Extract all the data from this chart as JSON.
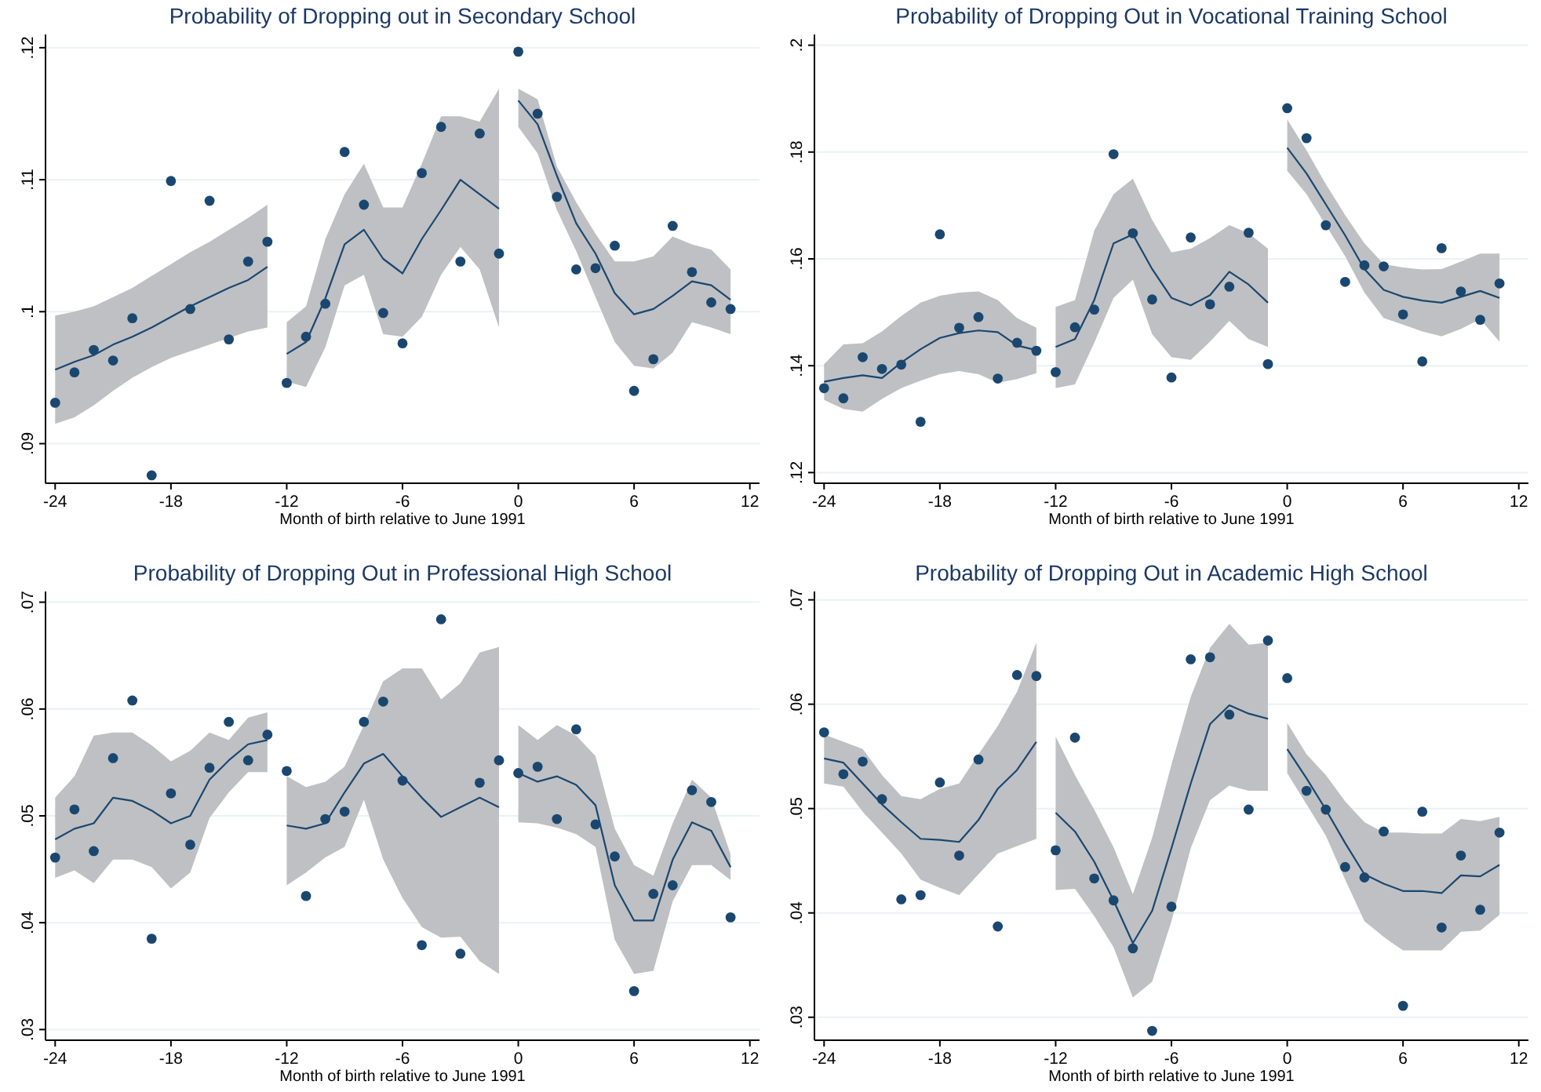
{
  "chart_data": [
    {
      "type": "scatter",
      "title": "Probability of Dropping out in Secondary School",
      "xlabel": "Month of birth relative to June 1991",
      "xlim": [
        -24.5,
        12.5
      ],
      "xticks": [
        -24,
        -18,
        -12,
        -6,
        0,
        6,
        12
      ],
      "ylim": [
        0.087,
        0.121
      ],
      "yticks": [
        {
          "value": 0.09,
          "label": ".09"
        },
        {
          "value": 0.1,
          "label": ".1"
        },
        {
          "value": 0.11,
          "label": ".11"
        },
        {
          "value": 0.12,
          "label": ".12"
        }
      ],
      "grid": "y",
      "series": [
        {
          "type": "line",
          "color": "#1a476f",
          "x": [
            -24,
            -23,
            -22,
            -21,
            -20,
            -19,
            -18,
            -17,
            -16,
            -15,
            -14,
            -13
          ],
          "values": [
            0.0956,
            0.0962,
            0.0967,
            0.0975,
            0.0981,
            0.0988,
            0.0996,
            0.1004,
            0.1011,
            0.1018,
            0.1024,
            0.1034
          ],
          "lower": [
            0.0915,
            0.092,
            0.0929,
            0.094,
            0.095,
            0.0958,
            0.0965,
            0.097,
            0.0975,
            0.098,
            0.0985,
            0.0988
          ],
          "upper": [
            0.0997,
            0.1,
            0.1004,
            0.1011,
            0.1018,
            0.1027,
            0.1036,
            0.1045,
            0.1053,
            0.1062,
            0.1071,
            0.1081
          ]
        },
        {
          "type": "line",
          "color": "#1a476f",
          "x": [
            -12,
            -11,
            -10,
            -9,
            -8,
            -7,
            -6,
            -5,
            -4,
            -3,
            -2,
            -1
          ],
          "values": [
            0.0968,
            0.0977,
            0.101,
            0.1051,
            0.1062,
            0.104,
            0.1029,
            0.1055,
            0.1077,
            0.11,
            0.1089,
            0.1078
          ],
          "lower": [
            0.0947,
            0.0943,
            0.0973,
            0.102,
            0.1028,
            0.0983,
            0.0981,
            0.0996,
            0.1028,
            0.1049,
            0.1032,
            0.0988
          ],
          "upper": [
            0.0992,
            0.1004,
            0.1055,
            0.1089,
            0.1112,
            0.1079,
            0.1079,
            0.1112,
            0.1148,
            0.1148,
            0.1144,
            0.1169
          ]
        },
        {
          "type": "line",
          "color": "#1a476f",
          "x": [
            0,
            1,
            2,
            3,
            4,
            5,
            6,
            7,
            8,
            9,
            10,
            11
          ],
          "values": [
            0.116,
            0.1142,
            0.1103,
            0.1067,
            0.1044,
            0.1014,
            0.0998,
            0.1002,
            0.1012,
            0.1023,
            0.102,
            0.1009
          ],
          "lower": [
            0.114,
            0.112,
            0.1077,
            0.1046,
            0.1011,
            0.0977,
            0.0959,
            0.0957,
            0.0969,
            0.0992,
            0.0988,
            0.0983
          ],
          "upper": [
            0.1169,
            0.1161,
            0.111,
            0.1083,
            0.1059,
            0.1038,
            0.1038,
            0.1042,
            0.1057,
            0.1051,
            0.1047,
            0.1032
          ]
        },
        {
          "marker": "circle",
          "color": "#1a476f",
          "x": [
            -24,
            -23,
            -22,
            -21,
            -20,
            -19,
            -18,
            -17,
            -16,
            -15,
            -14,
            -13,
            -12,
            -11,
            -10,
            -9,
            -8,
            -7,
            -6,
            -5,
            -4,
            -3,
            -2,
            -1,
            0,
            1,
            2,
            3,
            4,
            5,
            6,
            7,
            8,
            9,
            10,
            11
          ],
          "values": [
            0.0931,
            0.0954,
            0.0971,
            0.0963,
            0.0995,
            0.0876,
            0.1099,
            0.1002,
            0.1084,
            0.0979,
            0.1038,
            0.1053,
            0.0946,
            0.0981,
            0.1006,
            0.1121,
            0.1081,
            0.0999,
            0.0976,
            0.1105,
            0.114,
            0.1038,
            0.1135,
            0.1044,
            0.1197,
            0.115,
            0.1087,
            0.1032,
            0.1033,
            0.105,
            0.094,
            0.0964,
            0.1065,
            0.103,
            0.1007,
            0.1002
          ]
        }
      ]
    },
    {
      "type": "scatter",
      "title": "Probability of Dropping Out in Vocational Training School",
      "xlabel": "Month of birth relative to June 1991",
      "xlim": [
        -24.5,
        12.5
      ],
      "xticks": [
        -24,
        -18,
        -12,
        -6,
        0,
        6,
        12
      ],
      "ylim": [
        0.118,
        0.202
      ],
      "yticks": [
        {
          "value": 0.12,
          "label": ".12"
        },
        {
          "value": 0.14,
          "label": ".14"
        },
        {
          "value": 0.16,
          "label": ".16"
        },
        {
          "value": 0.18,
          "label": ".18"
        },
        {
          "value": 0.2,
          "label": ".2"
        }
      ],
      "grid": "y",
      "series": [
        {
          "type": "line",
          "color": "#1a476f",
          "x": [
            -24,
            -23,
            -22,
            -21,
            -20,
            -19,
            -18,
            -17,
            -16,
            -15,
            -14,
            -13
          ],
          "values": [
            0.137,
            0.1377,
            0.1382,
            0.1377,
            0.1406,
            0.1431,
            0.1452,
            0.1461,
            0.1466,
            0.1463,
            0.1438,
            0.1429
          ],
          "lower": [
            0.1336,
            0.1319,
            0.1314,
            0.1338,
            0.1358,
            0.1372,
            0.1384,
            0.139,
            0.1384,
            0.1368,
            0.1375,
            0.1386
          ],
          "upper": [
            0.1403,
            0.144,
            0.1442,
            0.1464,
            0.1493,
            0.1518,
            0.1531,
            0.1537,
            0.1539,
            0.1523,
            0.1489,
            0.1471
          ]
        },
        {
          "type": "line",
          "color": "#1a476f",
          "x": [
            -12,
            -11,
            -10,
            -9,
            -8,
            -7,
            -6,
            -5,
            -4,
            -3,
            -2,
            -1
          ],
          "values": [
            0.1435,
            0.145,
            0.1523,
            0.1629,
            0.1646,
            0.1581,
            0.1527,
            0.1513,
            0.1532,
            0.1576,
            0.1552,
            0.1518
          ],
          "lower": [
            0.1358,
            0.1365,
            0.1443,
            0.1527,
            0.1561,
            0.1459,
            0.1416,
            0.1411,
            0.1445,
            0.1484,
            0.145,
            0.1435
          ],
          "upper": [
            0.151,
            0.1523,
            0.1653,
            0.1721,
            0.175,
            0.1673,
            0.1612,
            0.1619,
            0.1639,
            0.1663,
            0.1648,
            0.1619
          ]
        },
        {
          "type": "line",
          "color": "#1a476f",
          "x": [
            0,
            1,
            2,
            3,
            4,
            5,
            6,
            7,
            8,
            9,
            10,
            11
          ],
          "values": [
            0.1808,
            0.176,
            0.1702,
            0.1644,
            0.1581,
            0.1542,
            0.1529,
            0.1522,
            0.1518,
            0.1529,
            0.154,
            0.1527
          ],
          "lower": [
            0.1765,
            0.1721,
            0.1663,
            0.1605,
            0.1537,
            0.1489,
            0.1477,
            0.1464,
            0.1455,
            0.1469,
            0.1487,
            0.1445
          ],
          "upper": [
            0.1861,
            0.1803,
            0.174,
            0.1682,
            0.1629,
            0.159,
            0.1584,
            0.158,
            0.1581,
            0.1595,
            0.161,
            0.161
          ]
        },
        {
          "marker": "circle",
          "color": "#1a476f",
          "x": [
            -24,
            -23,
            -22,
            -21,
            -20,
            -19,
            -18,
            -17,
            -16,
            -15,
            -14,
            -13,
            -12,
            -11,
            -10,
            -9,
            -8,
            -7,
            -6,
            -5,
            -4,
            -3,
            -2,
            -1,
            0,
            1,
            2,
            3,
            4,
            5,
            6,
            7,
            8,
            9,
            10,
            11
          ],
          "values": [
            0.1358,
            0.1339,
            0.1416,
            0.1394,
            0.1402,
            0.1295,
            0.1646,
            0.1471,
            0.1491,
            0.1376,
            0.1443,
            0.1428,
            0.1388,
            0.1472,
            0.1505,
            0.1796,
            0.1648,
            0.1524,
            0.1378,
            0.164,
            0.1515,
            0.1548,
            0.1649,
            0.1403,
            0.1882,
            0.1826,
            0.1663,
            0.1557,
            0.1588,
            0.1586,
            0.1496,
            0.1408,
            0.162,
            0.1539,
            0.1486,
            0.1554
          ]
        }
      ]
    },
    {
      "type": "scatter",
      "title": "Probability of Dropping Out in Professional High School",
      "xlabel": "Month of birth relative to June 1991",
      "xlim": [
        -24.5,
        12.5
      ],
      "xticks": [
        -24,
        -18,
        -12,
        -6,
        0,
        6,
        12
      ],
      "ylim": [
        0.029,
        0.071
      ],
      "yticks": [
        {
          "value": 0.03,
          "label": ".03"
        },
        {
          "value": 0.04,
          "label": ".04"
        },
        {
          "value": 0.05,
          "label": ".05"
        },
        {
          "value": 0.06,
          "label": ".06"
        },
        {
          "value": 0.07,
          "label": ".07"
        }
      ],
      "grid": "y",
      "series": [
        {
          "type": "line",
          "color": "#1a476f",
          "x": [
            -24,
            -23,
            -22,
            -21,
            -20,
            -19,
            -18,
            -17,
            -16,
            -15,
            -14,
            -13
          ],
          "values": [
            0.0478,
            0.0488,
            0.0493,
            0.0517,
            0.0514,
            0.0505,
            0.0493,
            0.05,
            0.0534,
            0.0552,
            0.0567,
            0.0571
          ],
          "lower": [
            0.0442,
            0.0449,
            0.0437,
            0.0459,
            0.0459,
            0.0452,
            0.0432,
            0.0447,
            0.0498,
            0.0522,
            0.0541,
            0.0541
          ],
          "upper": [
            0.0517,
            0.0537,
            0.0575,
            0.0578,
            0.0578,
            0.0566,
            0.0551,
            0.0561,
            0.0578,
            0.0571,
            0.0592,
            0.0597
          ]
        },
        {
          "type": "line",
          "color": "#1a476f",
          "x": [
            -12,
            -11,
            -10,
            -9,
            -8,
            -7,
            -6,
            -5,
            -4,
            -3,
            -2,
            -1
          ],
          "values": [
            0.0491,
            0.0488,
            0.0493,
            0.0522,
            0.0549,
            0.0558,
            0.0537,
            0.0517,
            0.0499,
            0.0508,
            0.0517,
            0.0508
          ],
          "lower": [
            0.0435,
            0.0447,
            0.0461,
            0.0471,
            0.0515,
            0.0459,
            0.0423,
            0.0396,
            0.0386,
            0.0387,
            0.0364,
            0.0352
          ],
          "upper": [
            0.0537,
            0.0527,
            0.0532,
            0.0546,
            0.0585,
            0.0626,
            0.0638,
            0.0638,
            0.0609,
            0.0624,
            0.0653,
            0.0658
          ]
        },
        {
          "type": "line",
          "color": "#1a476f",
          "x": [
            0,
            1,
            2,
            3,
            4,
            5,
            6,
            7,
            8,
            9,
            10,
            11
          ],
          "values": [
            0.054,
            0.0532,
            0.0537,
            0.0529,
            0.051,
            0.0435,
            0.0402,
            0.0402,
            0.0459,
            0.0494,
            0.0486,
            0.0452
          ],
          "lower": [
            0.0494,
            0.0493,
            0.0489,
            0.0483,
            0.0471,
            0.0384,
            0.0352,
            0.0355,
            0.042,
            0.0454,
            0.0454,
            0.044
          ],
          "upper": [
            0.0585,
            0.0571,
            0.0585,
            0.0575,
            0.0556,
            0.0488,
            0.0454,
            0.0444,
            0.0493,
            0.0534,
            0.0517,
            0.0464
          ]
        },
        {
          "marker": "circle",
          "color": "#1a476f",
          "x": [
            -24,
            -23,
            -22,
            -21,
            -20,
            -19,
            -18,
            -17,
            -16,
            -15,
            -14,
            -13,
            -12,
            -11,
            -10,
            -9,
            -8,
            -7,
            -6,
            -5,
            -4,
            -3,
            -2,
            -1,
            0,
            1,
            2,
            3,
            4,
            5,
            6,
            7,
            8,
            9,
            10,
            11
          ],
          "values": [
            0.0461,
            0.0506,
            0.0467,
            0.0554,
            0.0608,
            0.0385,
            0.0521,
            0.0473,
            0.0545,
            0.0588,
            0.0552,
            0.0576,
            0.0542,
            0.0425,
            0.0497,
            0.0504,
            0.0588,
            0.0607,
            0.0533,
            0.0379,
            0.0684,
            0.0371,
            0.0531,
            0.0552,
            0.054,
            0.0546,
            0.0497,
            0.0581,
            0.0492,
            0.0462,
            0.0336,
            0.0427,
            0.0435,
            0.0524,
            0.0513,
            0.0405
          ]
        }
      ]
    },
    {
      "type": "scatter",
      "title": "Probability of Dropping Out in Academic High School",
      "xlabel": "Month of birth relative to June 1991",
      "xlim": [
        -24.5,
        12.5
      ],
      "xticks": [
        -24,
        -18,
        -12,
        -6,
        0,
        6,
        12
      ],
      "ylim": [
        0.0278,
        0.0708
      ],
      "yticks": [
        {
          "value": 0.03,
          "label": ".03"
        },
        {
          "value": 0.04,
          "label": ".04"
        },
        {
          "value": 0.05,
          "label": ".05"
        },
        {
          "value": 0.06,
          "label": ".06"
        },
        {
          "value": 0.07,
          "label": ".07"
        }
      ],
      "grid": "y",
      "series": [
        {
          "type": "line",
          "color": "#1a476f",
          "x": [
            -24,
            -23,
            -22,
            -21,
            -20,
            -19,
            -18,
            -17,
            -16,
            -15,
            -14,
            -13
          ],
          "values": [
            0.0548,
            0.0544,
            0.0524,
            0.0504,
            0.0487,
            0.0471,
            0.047,
            0.0468,
            0.0489,
            0.0519,
            0.0537,
            0.0564
          ],
          "lower": [
            0.0524,
            0.0521,
            0.0497,
            0.0477,
            0.0457,
            0.0432,
            0.0424,
            0.0417,
            0.0437,
            0.0457,
            0.0464,
            0.0471
          ],
          "upper": [
            0.0571,
            0.0564,
            0.0557,
            0.0532,
            0.0512,
            0.0509,
            0.0519,
            0.0524,
            0.0552,
            0.0579,
            0.0612,
            0.0659
          ]
        },
        {
          "type": "line",
          "color": "#1a476f",
          "x": [
            -12,
            -11,
            -10,
            -9,
            -8,
            -7,
            -6,
            -5,
            -4,
            -3,
            -2,
            -1
          ],
          "values": [
            0.0496,
            0.0478,
            0.0449,
            0.0412,
            0.0371,
            0.0402,
            0.0462,
            0.0524,
            0.0581,
            0.0599,
            0.0591,
            0.0586
          ],
          "lower": [
            0.0422,
            0.0423,
            0.0397,
            0.0367,
            0.0319,
            0.0334,
            0.0392,
            0.0462,
            0.0508,
            0.0522,
            0.0517,
            0.0517
          ],
          "upper": [
            0.0569,
            0.0532,
            0.0499,
            0.0463,
            0.0418,
            0.0472,
            0.0542,
            0.0607,
            0.0654,
            0.0677,
            0.0657,
            0.0659
          ]
        },
        {
          "type": "line",
          "color": "#1a476f",
          "x": [
            0,
            1,
            2,
            3,
            4,
            5,
            6,
            7,
            8,
            9,
            10,
            11
          ],
          "values": [
            0.0557,
            0.0529,
            0.0499,
            0.0467,
            0.0437,
            0.0428,
            0.0421,
            0.0421,
            0.0419,
            0.0436,
            0.0435,
            0.0446
          ],
          "lower": [
            0.0534,
            0.0504,
            0.0474,
            0.0432,
            0.0392,
            0.0377,
            0.0364,
            0.0364,
            0.0364,
            0.0382,
            0.0383,
            0.0398
          ],
          "upper": [
            0.0582,
            0.0552,
            0.0532,
            0.0507,
            0.0487,
            0.0477,
            0.0477,
            0.0476,
            0.0476,
            0.049,
            0.0488,
            0.0492
          ]
        },
        {
          "marker": "circle",
          "color": "#1a476f",
          "x": [
            -24,
            -23,
            -22,
            -21,
            -20,
            -19,
            -18,
            -17,
            -16,
            -15,
            -14,
            -13,
            -12,
            -11,
            -10,
            -9,
            -8,
            -7,
            -6,
            -5,
            -4,
            -3,
            -2,
            -1,
            0,
            1,
            2,
            3,
            4,
            5,
            6,
            7,
            8,
            9,
            10,
            11
          ],
          "values": [
            0.0573,
            0.0533,
            0.0545,
            0.0509,
            0.0413,
            0.0417,
            0.0525,
            0.0455,
            0.0547,
            0.0387,
            0.0628,
            0.0627,
            0.046,
            0.0568,
            0.0433,
            0.0412,
            0.0366,
            0.0287,
            0.0406,
            0.0643,
            0.0645,
            0.059,
            0.0499,
            0.0661,
            0.0625,
            0.0517,
            0.0499,
            0.0444,
            0.0434,
            0.0478,
            0.0311,
            0.0497,
            0.0386,
            0.0455,
            0.0403,
            0.0477
          ]
        }
      ]
    }
  ]
}
